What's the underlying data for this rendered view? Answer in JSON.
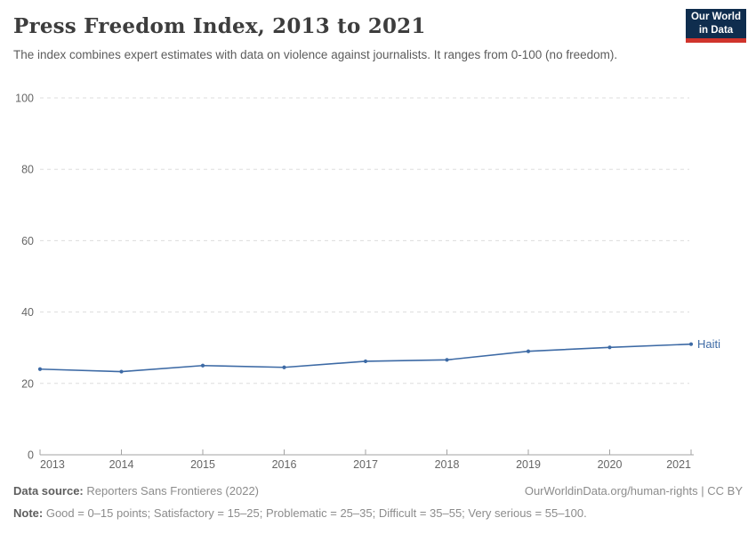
{
  "header": {
    "title": "Press Freedom Index, 2013 to 2021",
    "subtitle": "The index combines expert estimates with data on violence against journalists. It ranges from 0-100 (no freedom)."
  },
  "logo": {
    "line1": "Our World",
    "line2": "in Data",
    "bg_color": "#0f2d4e",
    "accent_color": "#d0342c"
  },
  "chart_data": {
    "type": "line",
    "title": "Press Freedom Index, 2013 to 2021",
    "x": [
      2013,
      2014,
      2015,
      2016,
      2017,
      2018,
      2019,
      2020,
      2021
    ],
    "series": [
      {
        "name": "Haiti",
        "color": "#3d6aa5",
        "values": [
          24.0,
          23.3,
          25.0,
          24.5,
          26.2,
          26.6,
          29.0,
          30.1,
          31.0
        ]
      }
    ],
    "xlabel": "",
    "ylabel": "",
    "ylim": [
      0,
      100
    ],
    "yticks": [
      0,
      20,
      40,
      60,
      80,
      100
    ],
    "grid": true,
    "grid_color": "#dddddd",
    "axis_color": "#a3a3a3",
    "tick_label_color": "#666666",
    "legend_position": "line-end-label"
  },
  "footer": {
    "datasource_label": "Data source:",
    "datasource_value": " Reporters Sans Frontieres (2022)",
    "note_label": "Note:",
    "note_value": " Good = 0–15 points; Satisfactory = 15–25; Problematic = 25–35; Difficult = 35–55; Very serious = 55–100.",
    "right_text": "OurWorldinData.org/human-rights | CC BY"
  }
}
